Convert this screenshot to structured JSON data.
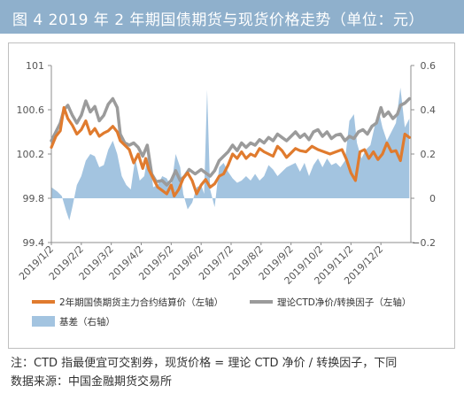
{
  "figure_title": "图 4  2019 年 2 年期国债期货与现货价格走势（单位：元）",
  "notes": [
    "注：CTD 指最便宜可交割券，现货价格 = 理论 CTD 净价 / 转换因子，下同",
    "数据来源：中国金融期货交易所"
  ],
  "colors": {
    "title_bar": "#8fb0cc",
    "futures": "#e07b2e",
    "ctd": "#9b9b9b",
    "basis": "#a3c4e0"
  },
  "chart_data": {
    "type": "line+area",
    "title": "",
    "left_axis": {
      "min": 99.4,
      "max": 101.0,
      "ticks": [
        "99.4",
        "99.8",
        "100.2",
        "100.6",
        "101"
      ]
    },
    "right_axis": {
      "min": -0.2,
      "max": 0.6,
      "ticks": [
        "−0.2",
        "0",
        "0.2",
        "0.4",
        "0.6"
      ]
    },
    "x_tick_labels": [
      "2019/1/2",
      "2019/2/2",
      "2019/3/2",
      "2019/4/2",
      "2019/5/2",
      "2019/6/2",
      "2019/7/2",
      "2019/8/2",
      "2019/9/2",
      "2019/10/2",
      "2019/11/2",
      "2019/12/2"
    ],
    "x_months": [
      0,
      1,
      2,
      3,
      4,
      5,
      6,
      7,
      8,
      9,
      10,
      11
    ],
    "x_range_months": [
      0,
      12
    ],
    "legend_placement": "bottom",
    "grid": false,
    "series": [
      {
        "name": "2年期国债期货主力合约结算价（左轴）",
        "axis": "left",
        "style": "line",
        "points": [
          [
            0.0,
            100.26
          ],
          [
            0.15,
            100.36
          ],
          [
            0.3,
            100.41
          ],
          [
            0.42,
            100.62
          ],
          [
            0.55,
            100.52
          ],
          [
            0.7,
            100.46
          ],
          [
            0.85,
            100.38
          ],
          [
            1.0,
            100.42
          ],
          [
            1.15,
            100.5
          ],
          [
            1.3,
            100.38
          ],
          [
            1.45,
            100.43
          ],
          [
            1.6,
            100.36
          ],
          [
            1.75,
            100.39
          ],
          [
            1.9,
            100.41
          ],
          [
            2.05,
            100.45
          ],
          [
            2.2,
            100.4
          ],
          [
            2.3,
            100.32
          ],
          [
            2.45,
            100.28
          ],
          [
            2.6,
            100.24
          ],
          [
            2.75,
            100.12
          ],
          [
            2.9,
            100.2
          ],
          [
            3.05,
            100.07
          ],
          [
            3.15,
            100.16
          ],
          [
            3.25,
            100.06
          ],
          [
            3.4,
            99.98
          ],
          [
            3.55,
            99.9
          ],
          [
            3.7,
            99.87
          ],
          [
            3.85,
            99.84
          ],
          [
            4.0,
            99.92
          ],
          [
            4.1,
            99.82
          ],
          [
            4.25,
            99.88
          ],
          [
            4.4,
            99.98
          ],
          [
            4.55,
            100.03
          ],
          [
            4.7,
            99.96
          ],
          [
            4.85,
            99.84
          ],
          [
            5.0,
            99.92
          ],
          [
            5.15,
            99.97
          ],
          [
            5.3,
            99.9
          ],
          [
            5.45,
            99.93
          ],
          [
            5.6,
            100.0
          ],
          [
            5.75,
            100.02
          ],
          [
            5.9,
            100.1
          ],
          [
            6.05,
            100.2
          ],
          [
            6.2,
            100.16
          ],
          [
            6.35,
            100.22
          ],
          [
            6.5,
            100.16
          ],
          [
            6.65,
            100.2
          ],
          [
            6.8,
            100.18
          ],
          [
            6.95,
            100.25
          ],
          [
            7.1,
            100.22
          ],
          [
            7.25,
            100.2
          ],
          [
            7.4,
            100.18
          ],
          [
            7.55,
            100.27
          ],
          [
            7.7,
            100.23
          ],
          [
            7.85,
            100.17
          ],
          [
            8.0,
            100.21
          ],
          [
            8.15,
            100.25
          ],
          [
            8.3,
            100.23
          ],
          [
            8.5,
            100.22
          ],
          [
            8.7,
            100.27
          ],
          [
            8.9,
            100.24
          ],
          [
            9.1,
            100.22
          ],
          [
            9.3,
            100.2
          ],
          [
            9.5,
            100.22
          ],
          [
            9.7,
            100.24
          ],
          [
            9.85,
            100.15
          ],
          [
            10.0,
            100.03
          ],
          [
            10.15,
            99.96
          ],
          [
            10.3,
            100.22
          ],
          [
            10.45,
            100.24
          ],
          [
            10.6,
            100.16
          ],
          [
            10.75,
            100.22
          ],
          [
            10.9,
            100.15
          ],
          [
            11.05,
            100.2
          ],
          [
            11.2,
            100.3
          ],
          [
            11.35,
            100.22
          ],
          [
            11.5,
            100.23
          ],
          [
            11.65,
            100.14
          ],
          [
            11.8,
            100.38
          ],
          [
            11.95,
            100.35
          ]
        ]
      },
      {
        "name": "理论CTD净价/转换因子（左轴）",
        "axis": "left",
        "style": "line",
        "points": [
          [
            0.0,
            100.32
          ],
          [
            0.15,
            100.4
          ],
          [
            0.3,
            100.48
          ],
          [
            0.42,
            100.6
          ],
          [
            0.55,
            100.64
          ],
          [
            0.7,
            100.55
          ],
          [
            0.85,
            100.48
          ],
          [
            1.0,
            100.55
          ],
          [
            1.15,
            100.68
          ],
          [
            1.3,
            100.58
          ],
          [
            1.45,
            100.63
          ],
          [
            1.6,
            100.5
          ],
          [
            1.75,
            100.55
          ],
          [
            1.9,
            100.65
          ],
          [
            2.05,
            100.7
          ],
          [
            2.2,
            100.62
          ],
          [
            2.3,
            100.38
          ],
          [
            2.45,
            100.3
          ],
          [
            2.6,
            100.28
          ],
          [
            2.75,
            100.3
          ],
          [
            2.9,
            100.26
          ],
          [
            3.05,
            100.18
          ],
          [
            3.2,
            100.28
          ],
          [
            3.35,
            100.02
          ],
          [
            3.5,
            99.95
          ],
          [
            3.7,
            99.96
          ],
          [
            3.85,
            99.92
          ],
          [
            4.0,
            99.96
          ],
          [
            4.15,
            100.05
          ],
          [
            4.3,
            99.96
          ],
          [
            4.45,
            100.0
          ],
          [
            4.6,
            100.06
          ],
          [
            4.8,
            100.02
          ],
          [
            5.0,
            100.06
          ],
          [
            5.15,
            100.03
          ],
          [
            5.3,
            100.0
          ],
          [
            5.45,
            100.05
          ],
          [
            5.6,
            100.14
          ],
          [
            5.75,
            100.18
          ],
          [
            5.9,
            100.22
          ],
          [
            6.05,
            100.28
          ],
          [
            6.2,
            100.23
          ],
          [
            6.35,
            100.3
          ],
          [
            6.5,
            100.26
          ],
          [
            6.65,
            100.3
          ],
          [
            6.8,
            100.28
          ],
          [
            6.95,
            100.33
          ],
          [
            7.1,
            100.3
          ],
          [
            7.25,
            100.35
          ],
          [
            7.4,
            100.32
          ],
          [
            7.55,
            100.38
          ],
          [
            7.7,
            100.35
          ],
          [
            7.85,
            100.32
          ],
          [
            8.0,
            100.36
          ],
          [
            8.15,
            100.4
          ],
          [
            8.3,
            100.35
          ],
          [
            8.45,
            100.38
          ],
          [
            8.6,
            100.33
          ],
          [
            8.75,
            100.4
          ],
          [
            8.9,
            100.42
          ],
          [
            9.05,
            100.36
          ],
          [
            9.2,
            100.4
          ],
          [
            9.35,
            100.34
          ],
          [
            9.5,
            100.37
          ],
          [
            9.65,
            100.38
          ],
          [
            9.8,
            100.32
          ],
          [
            9.95,
            100.36
          ],
          [
            10.1,
            100.34
          ],
          [
            10.25,
            100.4
          ],
          [
            10.4,
            100.42
          ],
          [
            10.55,
            100.38
          ],
          [
            10.7,
            100.45
          ],
          [
            10.85,
            100.48
          ],
          [
            11.0,
            100.62
          ],
          [
            11.1,
            100.54
          ],
          [
            11.25,
            100.58
          ],
          [
            11.4,
            100.52
          ],
          [
            11.55,
            100.56
          ],
          [
            11.65,
            100.64
          ],
          [
            11.8,
            100.66
          ],
          [
            11.95,
            100.7
          ]
        ]
      },
      {
        "name": "基差（右轴）",
        "axis": "right",
        "style": "area",
        "points": [
          [
            0.0,
            0.05
          ],
          [
            0.2,
            0.03
          ],
          [
            0.35,
            0.01
          ],
          [
            0.5,
            -0.06
          ],
          [
            0.6,
            -0.1
          ],
          [
            0.7,
            -0.04
          ],
          [
            0.85,
            0.06
          ],
          [
            1.0,
            0.1
          ],
          [
            1.15,
            0.17
          ],
          [
            1.3,
            0.2
          ],
          [
            1.45,
            0.19
          ],
          [
            1.6,
            0.14
          ],
          [
            1.75,
            0.15
          ],
          [
            1.9,
            0.22
          ],
          [
            2.05,
            0.26
          ],
          [
            2.2,
            0.2
          ],
          [
            2.35,
            0.1
          ],
          [
            2.5,
            0.06
          ],
          [
            2.65,
            0.04
          ],
          [
            2.8,
            0.18
          ],
          [
            2.95,
            0.08
          ],
          [
            3.1,
            0.1
          ],
          [
            3.25,
            0.22
          ],
          [
            3.4,
            0.05
          ],
          [
            3.55,
            0.06
          ],
          [
            3.7,
            0.1
          ],
          [
            3.85,
            0.09
          ],
          [
            4.0,
            0.05
          ],
          [
            4.15,
            0.2
          ],
          [
            4.3,
            0.14
          ],
          [
            4.4,
            0.02
          ],
          [
            4.55,
            -0.05
          ],
          [
            4.7,
            -0.02
          ],
          [
            4.85,
            0.05
          ],
          [
            5.0,
            0.06
          ],
          [
            5.1,
            0.02
          ],
          [
            5.2,
            0.49
          ],
          [
            5.3,
            0.04
          ],
          [
            5.45,
            -0.04
          ],
          [
            5.6,
            0.14
          ],
          [
            5.75,
            0.16
          ],
          [
            5.9,
            0.12
          ],
          [
            6.05,
            0.09
          ],
          [
            6.2,
            0.07
          ],
          [
            6.35,
            0.08
          ],
          [
            6.5,
            0.1
          ],
          [
            6.65,
            0.08
          ],
          [
            6.8,
            0.11
          ],
          [
            6.95,
            0.08
          ],
          [
            7.1,
            0.1
          ],
          [
            7.25,
            0.15
          ],
          [
            7.4,
            0.13
          ],
          [
            7.55,
            0.1
          ],
          [
            7.7,
            0.12
          ],
          [
            7.85,
            0.14
          ],
          [
            8.0,
            0.15
          ],
          [
            8.15,
            0.16
          ],
          [
            8.3,
            0.12
          ],
          [
            8.45,
            0.16
          ],
          [
            8.6,
            0.1
          ],
          [
            8.75,
            0.15
          ],
          [
            8.9,
            0.18
          ],
          [
            9.05,
            0.14
          ],
          [
            9.2,
            0.18
          ],
          [
            9.35,
            0.15
          ],
          [
            9.5,
            0.16
          ],
          [
            9.65,
            0.14
          ],
          [
            9.8,
            0.17
          ],
          [
            9.95,
            0.35
          ],
          [
            10.1,
            0.38
          ],
          [
            10.2,
            0.25
          ],
          [
            10.35,
            0.18
          ],
          [
            10.5,
            0.22
          ],
          [
            10.65,
            0.24
          ],
          [
            10.8,
            0.33
          ],
          [
            10.95,
            0.38
          ],
          [
            11.05,
            0.32
          ],
          [
            11.2,
            0.26
          ],
          [
            11.35,
            0.3
          ],
          [
            11.5,
            0.34
          ],
          [
            11.65,
            0.5
          ],
          [
            11.8,
            0.32
          ],
          [
            11.95,
            0.36
          ]
        ]
      }
    ]
  }
}
